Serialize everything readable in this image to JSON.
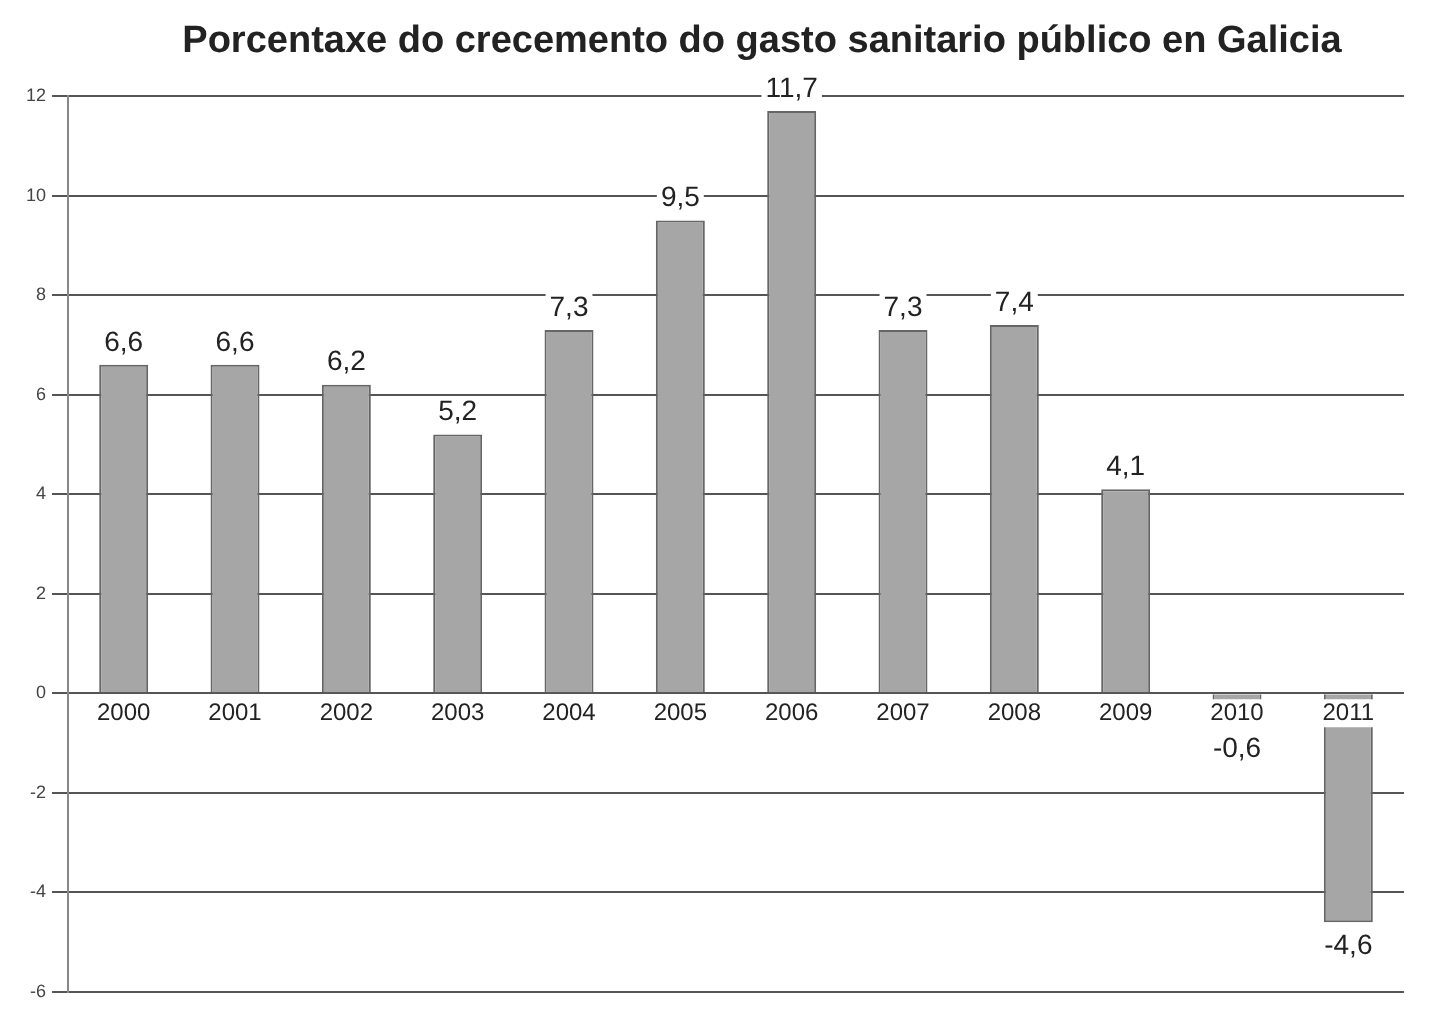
{
  "chart_data": {
    "type": "bar",
    "title": "Porcentaxe do crecemento do gasto sanitario público en Galicia",
    "categories": [
      "2000",
      "2001",
      "2002",
      "2003",
      "2004",
      "2005",
      "2006",
      "2007",
      "2008",
      "2009",
      "2010",
      "2011"
    ],
    "values": [
      6.6,
      6.6,
      6.2,
      5.2,
      7.3,
      9.5,
      11.7,
      7.3,
      7.4,
      4.1,
      -0.6,
      -4.6
    ],
    "value_labels": [
      "6,6",
      "6,6",
      "6,2",
      "5,2",
      "7,3",
      "9,5",
      "11,7",
      "7,3",
      "7,4",
      "4,1",
      "-0,6",
      "-4,6"
    ],
    "color": "#a6a6a6",
    "ylim": [
      -6,
      12
    ],
    "yticks": [
      -6,
      -4,
      -2,
      0,
      2,
      4,
      6,
      8,
      10,
      12
    ],
    "grid": "y"
  }
}
